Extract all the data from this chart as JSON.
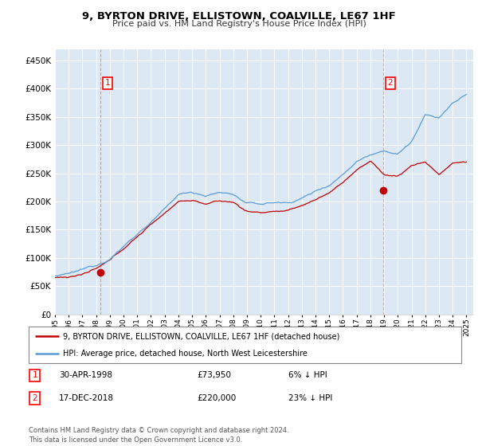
{
  "title": "9, BYRTON DRIVE, ELLISTOWN, COALVILLE, LE67 1HF",
  "subtitle": "Price paid vs. HM Land Registry's House Price Index (HPI)",
  "ytick_labels": [
    "£0",
    "£50K",
    "£100K",
    "£150K",
    "£200K",
    "£250K",
    "£300K",
    "£350K",
    "£400K",
    "£450K"
  ],
  "yticks": [
    0,
    50000,
    100000,
    150000,
    200000,
    250000,
    300000,
    350000,
    400000,
    450000
  ],
  "xlim_start": 1995.0,
  "xlim_end": 2025.5,
  "ylim_min": 0,
  "ylim_max": 470000,
  "hpi_color": "#5b9bd5",
  "price_color": "#c00000",
  "vline1_color": "#aaaaaa",
  "vline2_color": "#ff9999",
  "marker_color": "#c00000",
  "bg_fill_color": "#dce9f5",
  "sale1_x": 1998.33,
  "sale1_y": 73950,
  "sale2_x": 2018.96,
  "sale2_y": 220000,
  "legend_line1": "9, BYRTON DRIVE, ELLISTOWN, COALVILLE, LE67 1HF (detached house)",
  "legend_line2": "HPI: Average price, detached house, North West Leicestershire",
  "footnote": "Contains HM Land Registry data © Crown copyright and database right 2024.\nThis data is licensed under the Open Government Licence v3.0.",
  "xticks": [
    1995,
    1996,
    1997,
    1998,
    1999,
    2000,
    2001,
    2002,
    2003,
    2004,
    2005,
    2006,
    2007,
    2008,
    2009,
    2010,
    2011,
    2012,
    2013,
    2014,
    2015,
    2016,
    2017,
    2018,
    2019,
    2020,
    2021,
    2022,
    2023,
    2024,
    2025
  ],
  "hpi_nodes_x": [
    1995,
    1996,
    1997,
    1998,
    1999,
    2000,
    2001,
    2002,
    2003,
    2004,
    2005,
    2006,
    2007,
    2008,
    2009,
    2010,
    2011,
    2012,
    2013,
    2014,
    2015,
    2016,
    2017,
    2018,
    2019,
    2020,
    2021,
    2022,
    2023,
    2024,
    2025
  ],
  "hpi_nodes_y": [
    68000,
    70000,
    76000,
    84000,
    98000,
    120000,
    143000,
    164000,
    185000,
    210000,
    215000,
    210000,
    215000,
    212000,
    195000,
    193000,
    196000,
    195000,
    204000,
    216000,
    228000,
    248000,
    272000,
    285000,
    295000,
    288000,
    310000,
    355000,
    350000,
    375000,
    390000
  ],
  "red_nodes_x": [
    1995,
    1996,
    1997,
    1998,
    1999,
    2000,
    2001,
    2002,
    2003,
    2004,
    2005,
    2006,
    2007,
    2008,
    2009,
    2010,
    2011,
    2012,
    2013,
    2014,
    2015,
    2016,
    2017,
    2018,
    2019,
    2020,
    2021,
    2022,
    2023,
    2024,
    2025
  ],
  "red_nodes_y": [
    65000,
    67000,
    72000,
    80000,
    93000,
    114000,
    136000,
    157000,
    178000,
    200000,
    202000,
    196000,
    200000,
    198000,
    182000,
    180000,
    183000,
    182000,
    191000,
    202000,
    214000,
    233000,
    256000,
    270000,
    247000,
    244000,
    263000,
    270000,
    248000,
    268000,
    270000
  ]
}
